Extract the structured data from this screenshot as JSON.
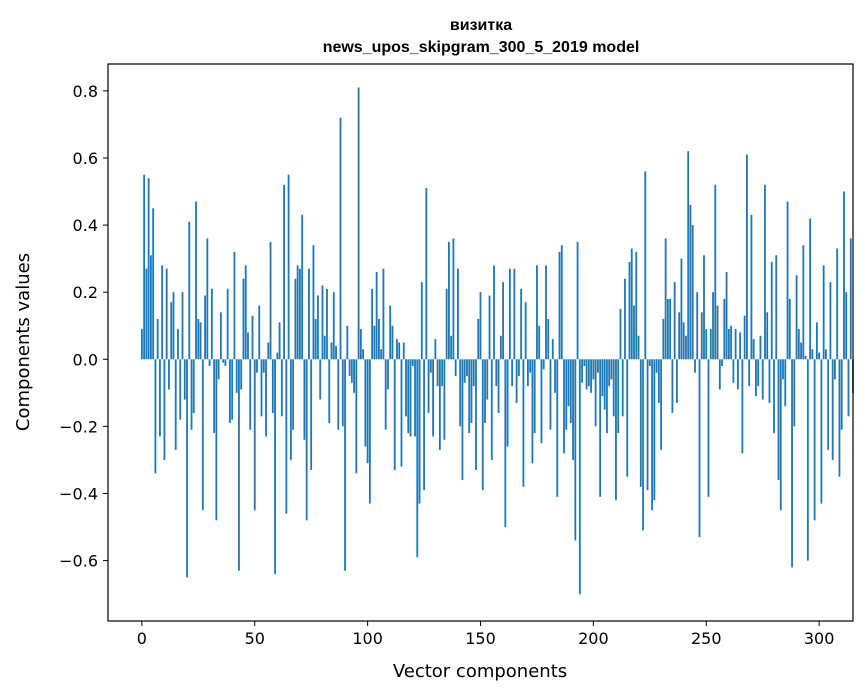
{
  "chart_data": {
    "type": "bar",
    "title_line1": "визитка",
    "title_line2": "news_upos_skipgram_300_5_2019 model",
    "xlabel": "Vector components",
    "ylabel": "Components values",
    "xlim": [
      -15,
      315
    ],
    "ylim": [
      -0.78,
      0.88
    ],
    "xticks": [
      0,
      50,
      100,
      150,
      200,
      250,
      300
    ],
    "xtick_labels": [
      "0",
      "50",
      "100",
      "150",
      "200",
      "250",
      "300"
    ],
    "yticks": [
      -0.6,
      -0.4,
      -0.2,
      0.0,
      0.2,
      0.4,
      0.6,
      0.8
    ],
    "ytick_labels": [
      "−0.6",
      "−0.4",
      "−0.2",
      "0.0",
      "0.2",
      "0.4",
      "0.6",
      "0.8"
    ],
    "bar_color": "#1f77b4",
    "grid": false,
    "values": [
      0.09,
      0.55,
      0.27,
      0.54,
      0.31,
      0.45,
      -0.34,
      0.12,
      -0.23,
      0.28,
      -0.3,
      0.27,
      -0.09,
      0.17,
      0.2,
      -0.27,
      0.09,
      -0.18,
      0.2,
      -0.12,
      -0.65,
      0.41,
      -0.21,
      -0.16,
      0.47,
      0.12,
      0.11,
      -0.45,
      0.19,
      0.36,
      -0.02,
      0.21,
      -0.22,
      -0.48,
      -0.06,
      0.14,
      -0.01,
      -0.02,
      0.21,
      -0.19,
      -0.18,
      0.32,
      -0.1,
      -0.63,
      -0.09,
      0.24,
      0.28,
      0.08,
      -0.21,
      0.13,
      -0.45,
      -0.04,
      0.16,
      -0.17,
      -0.04,
      -0.23,
      0.05,
      0.35,
      -0.16,
      -0.64,
      0.02,
      0.11,
      -0.17,
      0.52,
      -0.46,
      0.55,
      -0.3,
      -0.21,
      0.24,
      0.28,
      0.27,
      0.43,
      -0.24,
      -0.48,
      0.27,
      -0.33,
      0.34,
      0.12,
      0.19,
      -0.12,
      0.22,
      0.07,
      0.21,
      -0.19,
      0.05,
      0.2,
      0.04,
      -0.21,
      0.72,
      -0.2,
      -0.63,
      0.1,
      -0.05,
      -0.07,
      -0.1,
      -0.34,
      0.81,
      0.09,
      0.03,
      -0.26,
      -0.31,
      -0.43,
      0.21,
      0.1,
      0.26,
      0.12,
      0.03,
      0.27,
      -0.21,
      -0.09,
      0.16,
      0.1,
      -0.33,
      0.06,
      0.05,
      -0.32,
      0.05,
      -0.17,
      -0.22,
      -0.23,
      -0.02,
      -0.23,
      -0.59,
      -0.43,
      0.23,
      -0.39,
      0.51,
      -0.16,
      -0.04,
      -0.23,
      0.06,
      -0.08,
      -0.27,
      -0.08,
      -0.24,
      0.21,
      0.35,
      0.07,
      0.36,
      -0.05,
      0.27,
      -0.2,
      -0.36,
      -0.07,
      -0.05,
      -0.22,
      -0.19,
      -0.08,
      -0.33,
      0.12,
      0.2,
      -0.39,
      -0.19,
      -0.12,
      0.19,
      -0.3,
      0.28,
      -0.08,
      -0.16,
      0.07,
      0.23,
      -0.5,
      -0.26,
      0.27,
      -0.08,
      0.27,
      -0.13,
      -0.05,
      0.21,
      -0.38,
      0.17,
      -0.08,
      -0.04,
      -0.31,
      -0.22,
      0.28,
      0.1,
      -0.25,
      -0.03,
      0.28,
      0.12,
      -0.21,
      0.06,
      -0.1,
      -0.41,
      0.32,
      0.34,
      -0.28,
      -0.21,
      -0.14,
      -0.19,
      -0.3,
      -0.54,
      0.35,
      -0.7,
      -0.07,
      -0.02,
      -0.09,
      -0.08,
      -0.1,
      -0.06,
      -0.2,
      -0.04,
      -0.41,
      -0.11,
      -0.15,
      -0.22,
      -0.08,
      -0.06,
      -0.17,
      -0.42,
      -0.22,
      0.15,
      -0.17,
      0.24,
      -0.35,
      0.29,
      0.33,
      0.16,
      0.32,
      0.07,
      -0.38,
      -0.51,
      0.56,
      -0.39,
      -0.02,
      -0.45,
      -0.42,
      -0.04,
      -0.13,
      -0.27,
      0.12,
      0.36,
      0.18,
      0.18,
      -0.16,
      0.23,
      -0.13,
      0.14,
      0.3,
      0.11,
      0.07,
      0.62,
      0.46,
      0.4,
      -0.04,
      0.2,
      -0.53,
      0.14,
      0.31,
      0.09,
      -0.41,
      0.09,
      0.2,
      0.52,
      0.16,
      -0.09,
      -0.02,
      0.18,
      0.26,
      0.09,
      0.1,
      -0.07,
      0.09,
      -0.09,
      0.08,
      -0.28,
      0.13,
      0.61,
      -0.08,
      0.43,
      0.06,
      -0.11,
      -0.08,
      0.07,
      -0.12,
      0.52,
      0.14,
      -0.13,
      0.29,
      -0.22,
      0.31,
      -0.36,
      -0.45,
      -0.06,
      -0.14,
      0.47,
      0.18,
      -0.62,
      -0.2,
      0.25,
      0.09,
      0.05,
      0.34,
      0.01,
      -0.6,
      0.42,
      0.03,
      -0.48,
      0.11,
      0.02,
      -0.43,
      0.28,
      0.03,
      -0.27,
      0.23,
      -0.3,
      -0.06,
      0.33,
      -0.35,
      -0.21,
      0.5,
      0.2,
      -0.17,
      0.36,
      -0.1
    ]
  }
}
